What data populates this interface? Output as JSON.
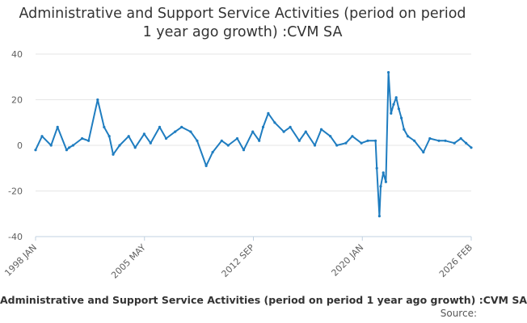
{
  "chart_data": {
    "type": "line",
    "title": "Administrative and Support Service Activities (period on period 1 year ago growth) :CVM SA",
    "xlabel": "",
    "ylabel": "",
    "ylim": [
      -40,
      40
    ],
    "yticks": [
      "40",
      "20",
      "0",
      "-20",
      "-40"
    ],
    "x_tick_labels": [
      "1998 JAN",
      "2005 MAY",
      "2012 SEP",
      "2020 JAN",
      "2026 FEB"
    ],
    "x_range": [
      "1998-01",
      "2026-02"
    ],
    "grid": true,
    "legend": "bottom",
    "series": [
      {
        "name": "Administrative and Support Service Activities (period on period 1 year ago growth) :CVM SA",
        "color": "#1f7dc0",
        "x": [
          "1998-01",
          "1998-06",
          "1999-01",
          "1999-06",
          "2000-01",
          "2000-03",
          "2000-06",
          "2001-01",
          "2001-06",
          "2002-01",
          "2002-06",
          "2002-10",
          "2003-01",
          "2003-06",
          "2004-01",
          "2004-06",
          "2005-01",
          "2005-06",
          "2006-01",
          "2006-06",
          "2007-01",
          "2007-06",
          "2008-01",
          "2008-06",
          "2009-01",
          "2009-06",
          "2010-01",
          "2010-06",
          "2011-01",
          "2011-06",
          "2012-01",
          "2012-06",
          "2012-09",
          "2013-01",
          "2013-06",
          "2014-01",
          "2014-06",
          "2015-01",
          "2015-06",
          "2016-01",
          "2016-06",
          "2017-01",
          "2017-06",
          "2018-01",
          "2018-06",
          "2019-01",
          "2019-06",
          "2019-12",
          "2020-01",
          "2020-03",
          "2020-04",
          "2020-06",
          "2020-08",
          "2020-10",
          "2020-12",
          "2021-02",
          "2021-04",
          "2021-06",
          "2021-08",
          "2021-10",
          "2022-01",
          "2022-06",
          "2023-01",
          "2023-06",
          "2024-01",
          "2024-06",
          "2025-01",
          "2025-06",
          "2025-10",
          "2026-02"
        ],
        "y": [
          -2,
          4,
          0,
          8,
          -2,
          -1,
          0,
          3,
          2,
          20,
          8,
          4,
          -4,
          0,
          4,
          -1,
          5,
          1,
          8,
          3,
          6,
          8,
          6,
          2,
          -9,
          -3,
          2,
          0,
          3,
          -2,
          6,
          2,
          8,
          14,
          10,
          6,
          8,
          2,
          6,
          0,
          7,
          4,
          0,
          1,
          4,
          1,
          2,
          2,
          -10,
          -31,
          -18,
          -12,
          -16,
          32,
          14,
          18,
          21,
          16,
          12,
          7,
          4,
          2,
          -3,
          3,
          2,
          2,
          1,
          3,
          1,
          -1
        ]
      }
    ]
  },
  "footer": {
    "legend_text": "Administrative and Support Service Activities (period on period 1 year ago growth) :CVM SA",
    "source_text": "Source:"
  }
}
